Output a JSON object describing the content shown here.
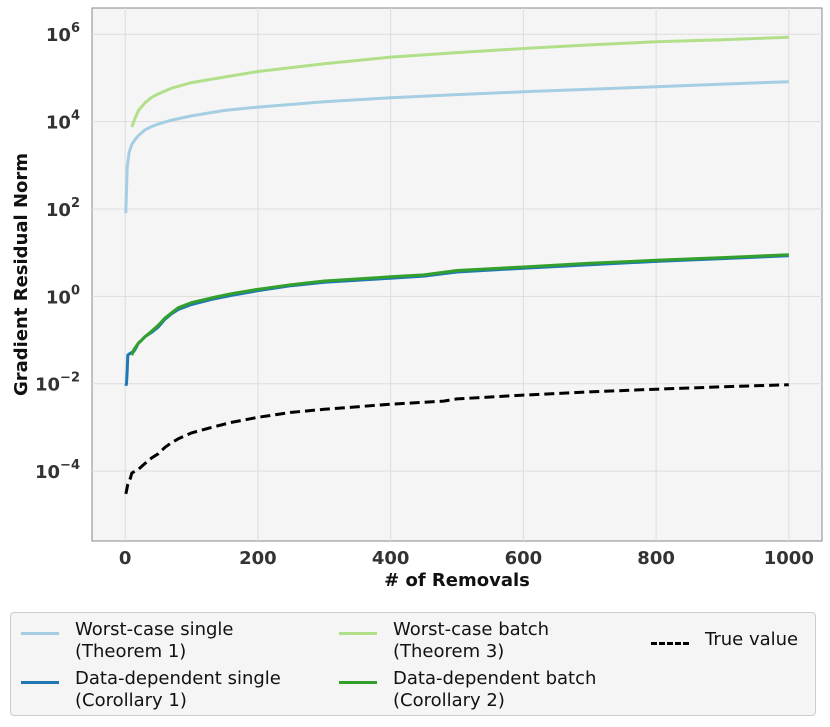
{
  "chart_data": {
    "type": "line",
    "title": "",
    "xlabel": "# of Removals",
    "ylabel": "Gradient Residual Norm",
    "xlim": [
      -50,
      1050
    ],
    "ylim_log10": [
      -5.6,
      6.6
    ],
    "yscale": "log",
    "grid": true,
    "legend_position": "bottom",
    "x_ticks": [
      0,
      200,
      400,
      600,
      800,
      1000
    ],
    "y_ticks": [
      {
        "base": "10",
        "exp": "6"
      },
      {
        "base": "10",
        "exp": "4"
      },
      {
        "base": "10",
        "exp": "2"
      },
      {
        "base": "10",
        "exp": "0"
      },
      {
        "base": "10",
        "exp": "−2"
      },
      {
        "base": "10",
        "exp": "−4"
      }
    ],
    "series": [
      {
        "name_line1": "Worst-case single",
        "name_line2": "(Theorem 1)",
        "color": "#a6cee3",
        "dash": "none",
        "x": [
          1,
          3,
          6,
          10,
          15,
          20,
          30,
          40,
          50,
          70,
          100,
          150,
          200,
          300,
          400,
          500,
          600,
          700,
          800,
          900,
          1000
        ],
        "y": [
          80,
          900,
          2000,
          3000,
          3900,
          4800,
          6500,
          7700,
          8800,
          10800,
          13500,
          18000,
          21500,
          28500,
          35000,
          41500,
          48000,
          55000,
          63000,
          72000,
          82000
        ]
      },
      {
        "name_line1": "Worst-case batch",
        "name_line2": "(Theorem 3)",
        "color": "#b2df8a",
        "dash": "none",
        "x": [
          10,
          15,
          20,
          30,
          40,
          50,
          70,
          100,
          150,
          200,
          300,
          400,
          500,
          600,
          700,
          800,
          900,
          1000
        ],
        "y": [
          7500,
          12000,
          18000,
          27000,
          36000,
          43000,
          58000,
          78000,
          105000,
          140000,
          210000,
          300000,
          380000,
          470000,
          570000,
          670000,
          750000,
          850000
        ]
      },
      {
        "name_line1": "Data-dependent single",
        "name_line2": "(Corollary 1)",
        "color": "#1f78b4",
        "dash": "none",
        "x": [
          1,
          2,
          3,
          4,
          6,
          8,
          10,
          13,
          16,
          20,
          25,
          30,
          40,
          50,
          60,
          70,
          80,
          100,
          130,
          160,
          200,
          250,
          300,
          400,
          450,
          500,
          600,
          700,
          800,
          900,
          1000
        ],
        "y": [
          0.009,
          0.01,
          0.02,
          0.045,
          0.048,
          0.05,
          0.052,
          0.055,
          0.065,
          0.085,
          0.1,
          0.12,
          0.15,
          0.2,
          0.3,
          0.4,
          0.5,
          0.65,
          0.85,
          1.05,
          1.35,
          1.75,
          2.1,
          2.6,
          2.9,
          3.6,
          4.4,
          5.3,
          6.3,
          7.3,
          8.5
        ]
      },
      {
        "name_line1": "Data-dependent batch",
        "name_line2": "(Corollary 2)",
        "color": "#33a02c",
        "dash": "none",
        "x": [
          10,
          13,
          16,
          20,
          25,
          30,
          40,
          50,
          60,
          70,
          80,
          100,
          130,
          160,
          200,
          250,
          300,
          400,
          450,
          500,
          600,
          700,
          800,
          900,
          1000
        ],
        "y": [
          0.045,
          0.06,
          0.07,
          0.085,
          0.1,
          0.12,
          0.16,
          0.22,
          0.32,
          0.42,
          0.55,
          0.72,
          0.92,
          1.15,
          1.45,
          1.85,
          2.25,
          2.8,
          3.1,
          3.9,
          4.7,
          5.7,
          6.7,
          7.7,
          9.0
        ]
      },
      {
        "name_line1": "True value",
        "name_line2": "",
        "color": "#000000",
        "dash": "dashed",
        "x": [
          1,
          2,
          4,
          6,
          8,
          10,
          15,
          20,
          30,
          40,
          50,
          60,
          70,
          80,
          100,
          130,
          160,
          200,
          250,
          300,
          400,
          480,
          500,
          600,
          700,
          800,
          900,
          1000
        ],
        "y": [
          3e-05,
          3.5e-05,
          5e-05,
          6e-05,
          7e-05,
          9e-05,
          0.0001,
          0.00011,
          0.00015,
          0.0002,
          0.00025,
          0.00035,
          0.00045,
          0.00055,
          0.00075,
          0.001,
          0.0013,
          0.0017,
          0.0022,
          0.0026,
          0.0034,
          0.004,
          0.0045,
          0.0055,
          0.0065,
          0.0075,
          0.0085,
          0.0095
        ]
      }
    ]
  }
}
